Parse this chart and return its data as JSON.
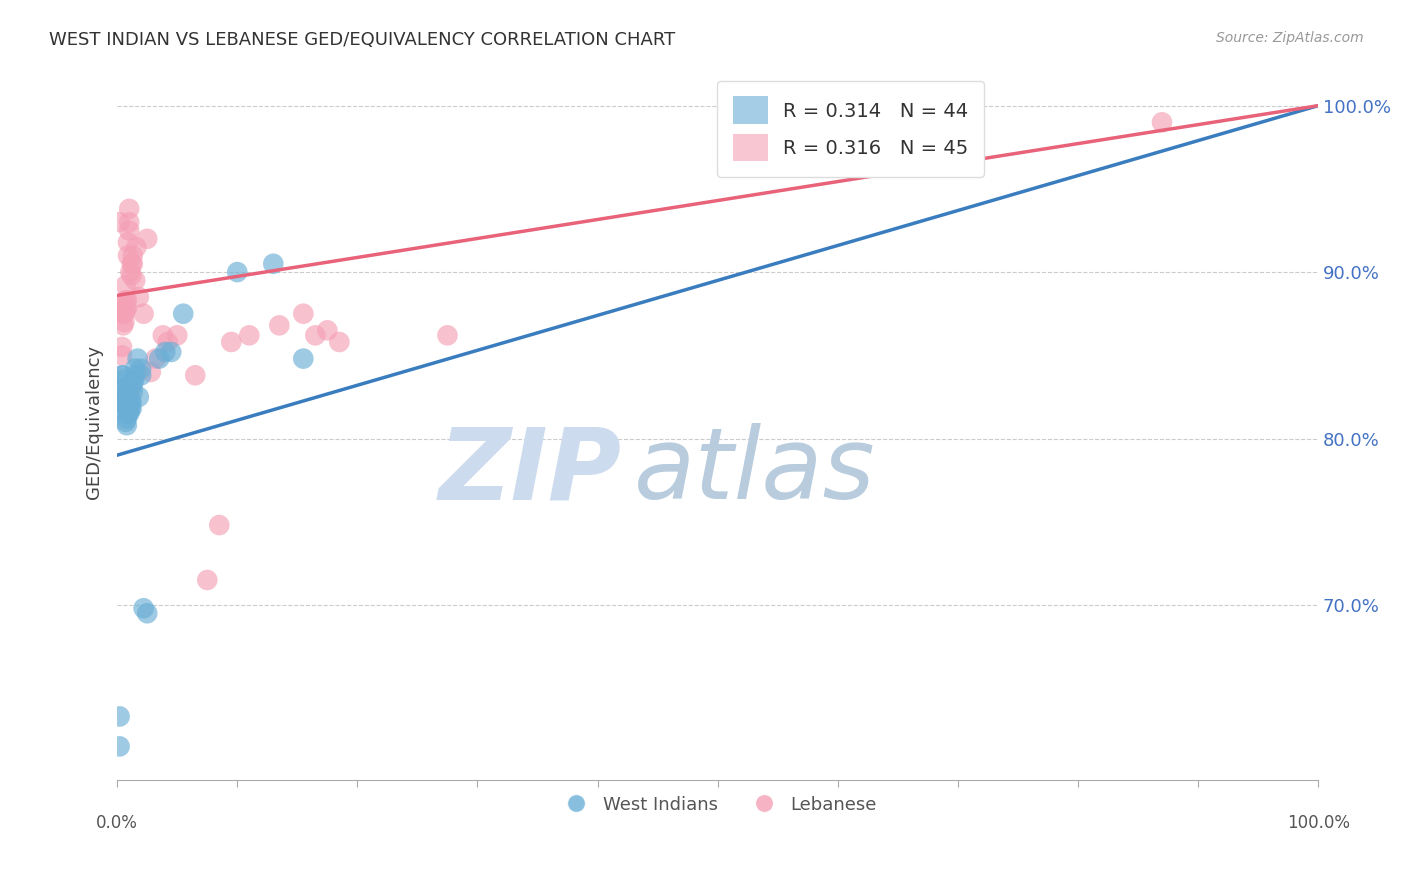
{
  "title": "WEST INDIAN VS LEBANESE GED/EQUIVALENCY CORRELATION CHART",
  "source": "Source: ZipAtlas.com",
  "ylabel": "GED/Equivalency",
  "ytick_labels": [
    "100.0%",
    "90.0%",
    "80.0%",
    "70.0%"
  ],
  "ytick_values": [
    1.0,
    0.9,
    0.8,
    0.7
  ],
  "xmin": 0.0,
  "xmax": 1.0,
  "ymin": 0.595,
  "ymax": 1.025,
  "legend_r1": "R = 0.314",
  "legend_n1": "N = 44",
  "legend_r2": "R = 0.316",
  "legend_n2": "N = 45",
  "color_blue": "#6aaed6",
  "color_pink": "#f4a0b5",
  "color_blue_line": "#3a7dbf",
  "color_pink_line": "#e8637a",
  "color_blue_text": "#4472c4",
  "watermark_zip_color": "#ccdcee",
  "watermark_atlas_color": "#b8ccde",
  "wi_line_start_y": 0.79,
  "wi_line_end_y": 1.0,
  "lb_line_start_y": 0.886,
  "lb_line_end_y": 1.0,
  "west_indians_x": [
    0.002,
    0.002,
    0.003,
    0.004,
    0.004,
    0.005,
    0.005,
    0.005,
    0.006,
    0.006,
    0.007,
    0.007,
    0.007,
    0.008,
    0.008,
    0.008,
    0.009,
    0.009,
    0.009,
    0.01,
    0.01,
    0.01,
    0.011,
    0.011,
    0.012,
    0.012,
    0.013,
    0.013,
    0.014,
    0.015,
    0.015,
    0.017,
    0.018,
    0.02,
    0.02,
    0.022,
    0.025,
    0.035,
    0.04,
    0.045,
    0.055,
    0.1,
    0.13,
    0.155
  ],
  "west_indians_y": [
    0.615,
    0.633,
    0.83,
    0.835,
    0.838,
    0.825,
    0.83,
    0.838,
    0.82,
    0.825,
    0.81,
    0.815,
    0.82,
    0.808,
    0.812,
    0.818,
    0.815,
    0.818,
    0.828,
    0.815,
    0.818,
    0.828,
    0.818,
    0.822,
    0.818,
    0.822,
    0.828,
    0.832,
    0.835,
    0.838,
    0.842,
    0.848,
    0.825,
    0.838,
    0.842,
    0.698,
    0.695,
    0.848,
    0.852,
    0.852,
    0.875,
    0.9,
    0.905,
    0.848
  ],
  "lebanese_x": [
    0.002,
    0.004,
    0.004,
    0.005,
    0.005,
    0.005,
    0.006,
    0.006,
    0.007,
    0.007,
    0.007,
    0.008,
    0.008,
    0.009,
    0.009,
    0.01,
    0.01,
    0.01,
    0.011,
    0.012,
    0.012,
    0.013,
    0.013,
    0.015,
    0.016,
    0.018,
    0.022,
    0.025,
    0.028,
    0.032,
    0.038,
    0.042,
    0.05,
    0.065,
    0.075,
    0.085,
    0.095,
    0.11,
    0.135,
    0.155,
    0.165,
    0.175,
    0.185,
    0.275,
    0.87
  ],
  "lebanese_y": [
    0.93,
    0.85,
    0.855,
    0.868,
    0.875,
    0.88,
    0.87,
    0.875,
    0.878,
    0.883,
    0.892,
    0.878,
    0.883,
    0.91,
    0.918,
    0.925,
    0.93,
    0.938,
    0.9,
    0.898,
    0.905,
    0.905,
    0.91,
    0.895,
    0.915,
    0.885,
    0.875,
    0.92,
    0.84,
    0.848,
    0.862,
    0.858,
    0.862,
    0.838,
    0.715,
    0.748,
    0.858,
    0.862,
    0.868,
    0.875,
    0.862,
    0.865,
    0.858,
    0.862,
    0.99
  ]
}
